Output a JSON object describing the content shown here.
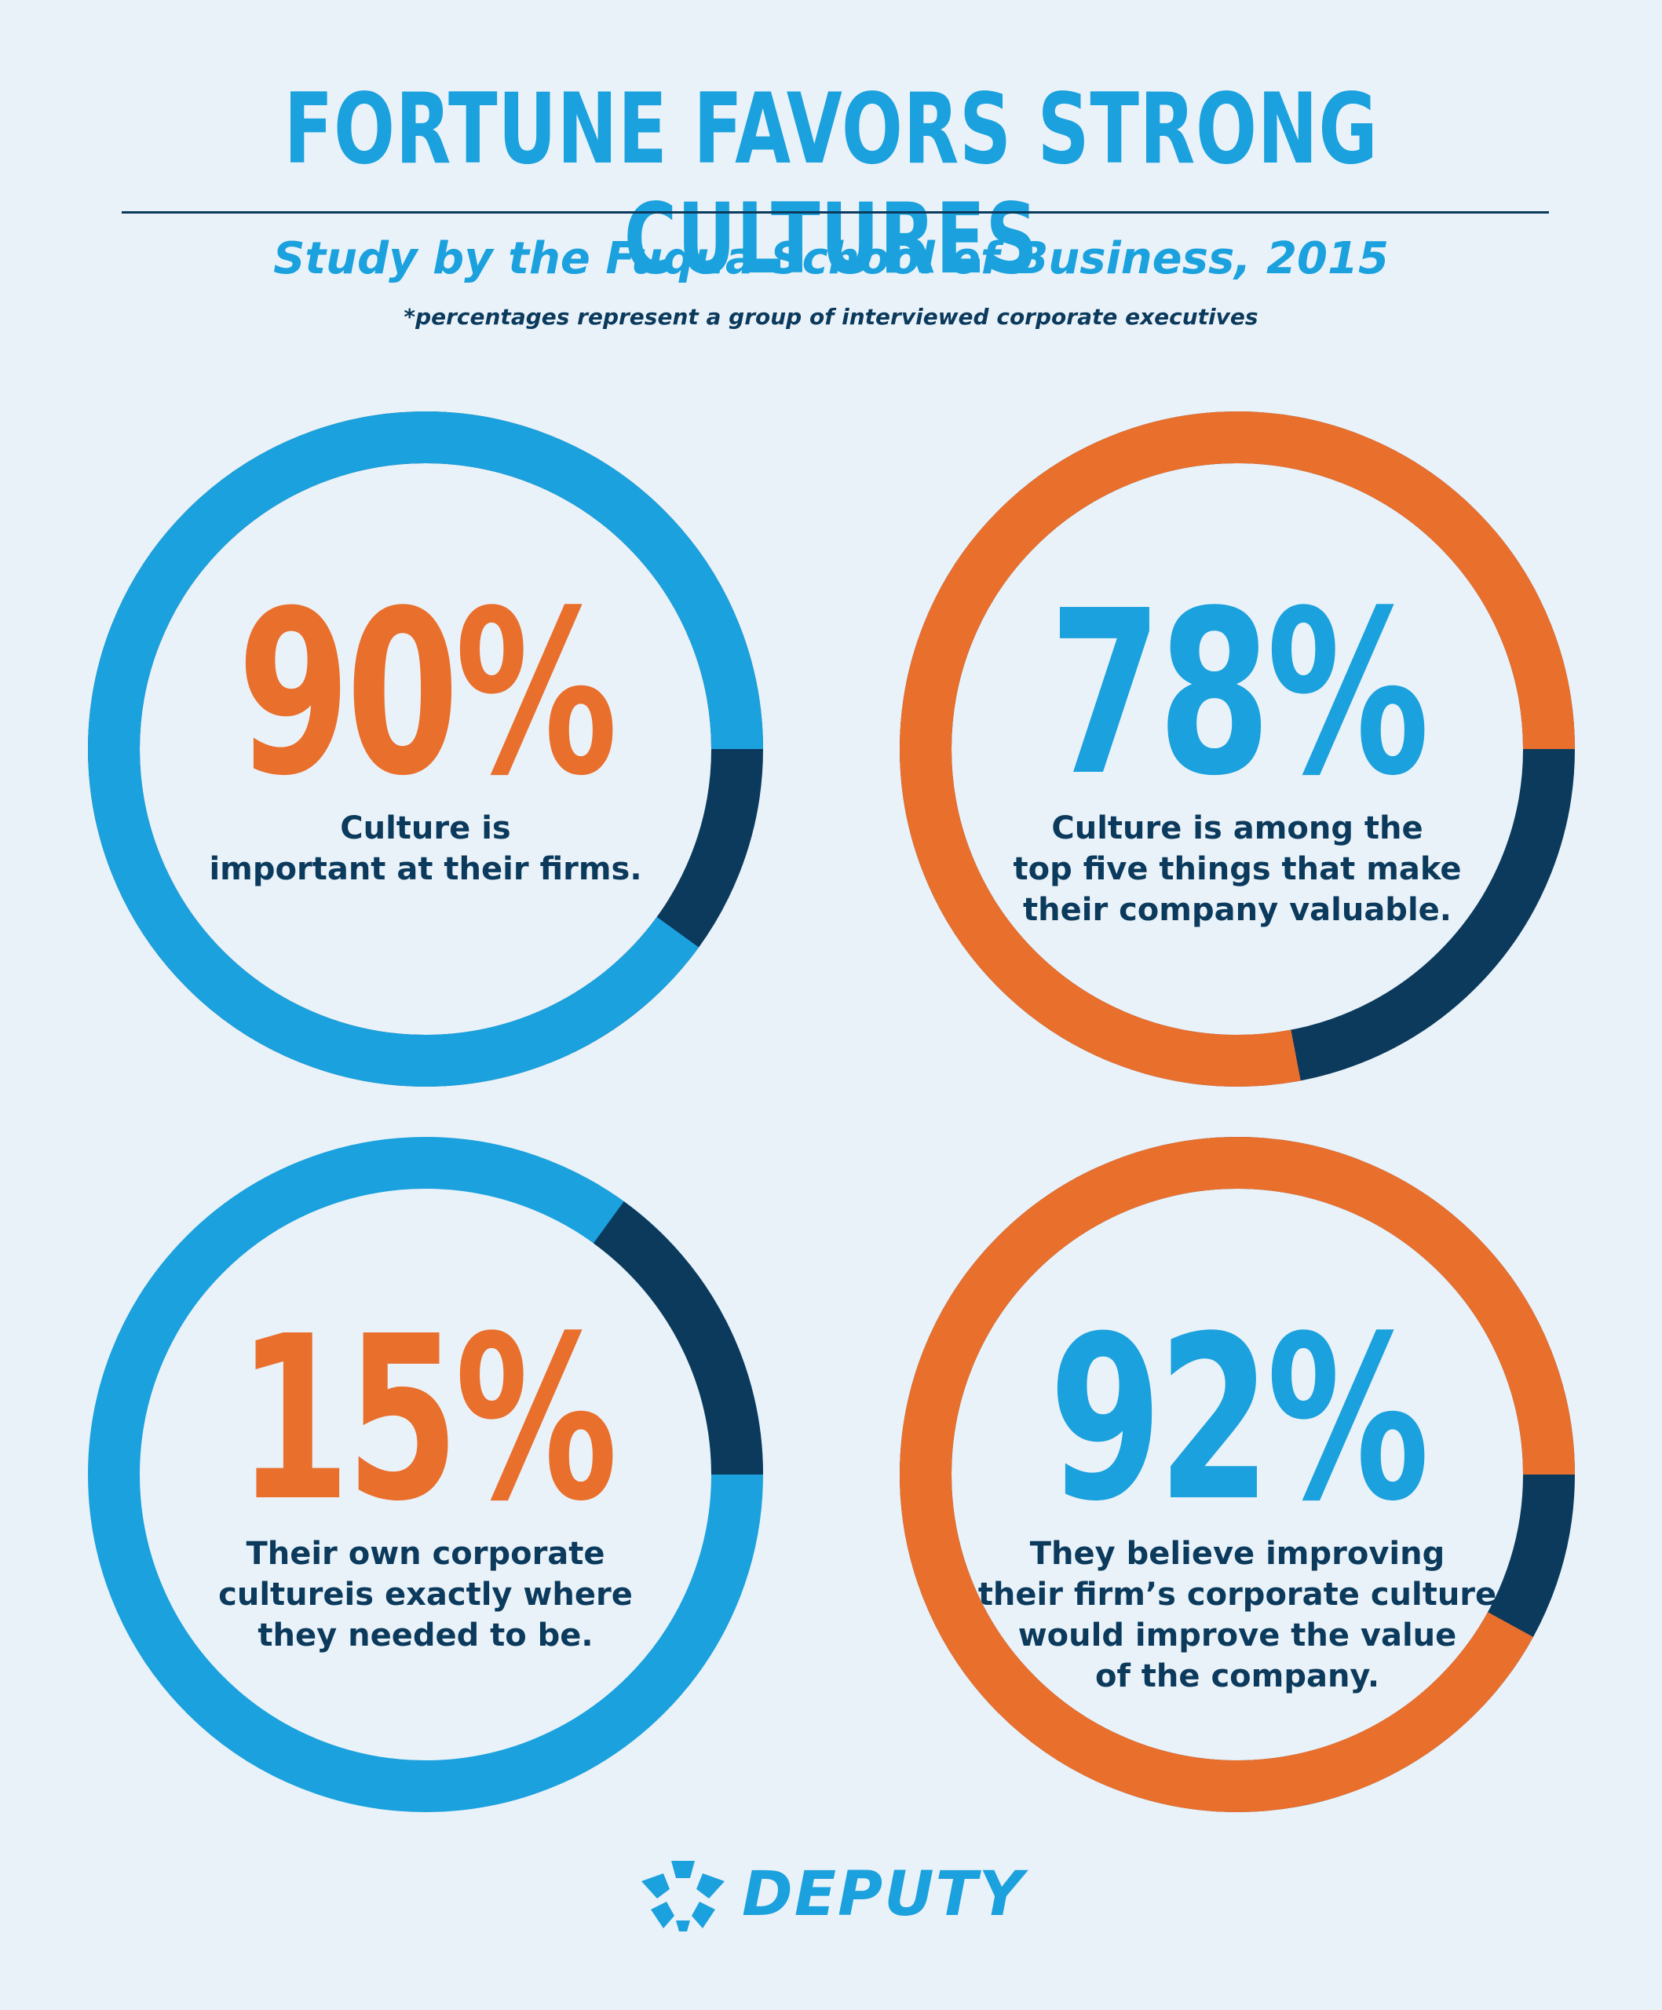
{
  "header": {
    "title": "FORTUNE FAVORS STRONG CULTURES",
    "subtitle": "Study by the Fuqua School of Business, 2015",
    "note": "*percentages represent a group of interviewed corporate executives"
  },
  "colors": {
    "blue": "#1ba1dd",
    "orange": "#e96f2d",
    "navy": "#0b3a5c",
    "background": "#eaf2f9"
  },
  "stats": [
    {
      "value": "90%",
      "percent": 90,
      "ring_color": "blue",
      "value_color": "orange",
      "text": "Culture is\nimportant at their firms."
    },
    {
      "value": "78%",
      "percent": 78,
      "ring_color": "orange",
      "value_color": "blue",
      "text": "Culture is among the\ntop five things that make\ntheir company valuable."
    },
    {
      "value": "15%",
      "percent": 15,
      "ring_color": "navy",
      "value_color": "orange",
      "text": "Their own corporate\ncultureis exactly where\nthey needed to be."
    },
    {
      "value": "92%",
      "percent": 92,
      "ring_color": "orange",
      "value_color": "blue",
      "text": "They believe improving\ntheir firm’s corporate culture\nwould improve the value\nof the company."
    }
  ],
  "brand": {
    "name": "DEPUTY",
    "logo_icon": "deputy-star-icon"
  }
}
